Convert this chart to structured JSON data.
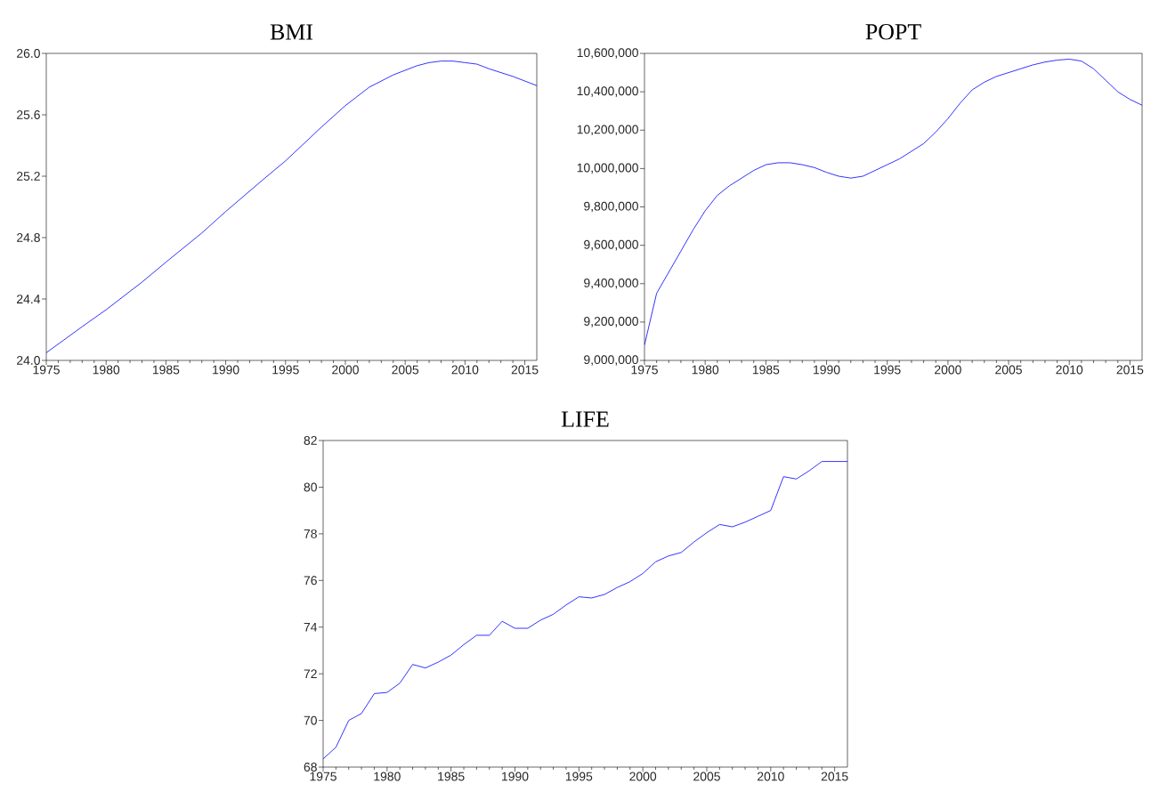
{
  "chart_data": [
    {
      "type": "line",
      "title": "BMI",
      "color": "#0000ff",
      "x": [
        1975,
        1978,
        1980,
        1983,
        1985,
        1988,
        1990,
        1993,
        1995,
        1998,
        2000,
        2002,
        2004,
        2005,
        2006,
        2007,
        2008,
        2009,
        2010,
        2011,
        2012,
        2014,
        2016
      ],
      "values": [
        24.05,
        24.22,
        24.33,
        24.51,
        24.64,
        24.83,
        24.97,
        25.17,
        25.3,
        25.52,
        25.66,
        25.78,
        25.86,
        25.89,
        25.92,
        25.94,
        25.95,
        25.95,
        25.94,
        25.93,
        25.9,
        25.85,
        25.79
      ],
      "xlim": [
        1975,
        2016
      ],
      "xticks": [
        1975,
        1980,
        1985,
        1990,
        1995,
        2000,
        2005,
        2010,
        2015
      ],
      "ylim": [
        24.0,
        26.0
      ],
      "yticks": [
        {
          "value": 24.0,
          "label": "24.0"
        },
        {
          "value": 24.4,
          "label": "24.4"
        },
        {
          "value": 24.8,
          "label": "24.8"
        },
        {
          "value": 25.2,
          "label": "25.2"
        },
        {
          "value": 25.6,
          "label": "25.6"
        },
        {
          "value": 26.0,
          "label": "26.0"
        }
      ]
    },
    {
      "type": "line",
      "title": "POPT",
      "color": "#0000ff",
      "x": [
        1975,
        1976,
        1977,
        1978,
        1979,
        1980,
        1981,
        1982,
        1983,
        1984,
        1985,
        1986,
        1987,
        1988,
        1989,
        1990,
        1991,
        1992,
        1993,
        1994,
        1995,
        1996,
        1997,
        1998,
        1999,
        2000,
        2001,
        2002,
        2003,
        2004,
        2005,
        2006,
        2007,
        2008,
        2009,
        2010,
        2011,
        2012,
        2013,
        2014,
        2015,
        2016
      ],
      "values": [
        9080000,
        9350000,
        9460000,
        9570000,
        9680000,
        9780000,
        9860000,
        9910000,
        9950000,
        9990000,
        10020000,
        10030000,
        10030000,
        10020000,
        10005000,
        9980000,
        9960000,
        9950000,
        9960000,
        9990000,
        10020000,
        10050000,
        10090000,
        10130000,
        10190000,
        10260000,
        10340000,
        10410000,
        10450000,
        10480000,
        10500000,
        10520000,
        10540000,
        10555000,
        10565000,
        10570000,
        10560000,
        10520000,
        10460000,
        10400000,
        10360000,
        10330000
      ],
      "xlim": [
        1975,
        2016
      ],
      "xticks": [
        1975,
        1980,
        1985,
        1990,
        1995,
        2000,
        2005,
        2010,
        2015
      ],
      "ylim": [
        9000000,
        10600000
      ],
      "yticks": [
        {
          "value": 9000000,
          "label": "9,000,000"
        },
        {
          "value": 9200000,
          "label": "9,200,000"
        },
        {
          "value": 9400000,
          "label": "9,400,000"
        },
        {
          "value": 9600000,
          "label": "9,600,000"
        },
        {
          "value": 9800000,
          "label": "9,800,000"
        },
        {
          "value": 10000000,
          "label": "10,000,000"
        },
        {
          "value": 10200000,
          "label": "10,200,000"
        },
        {
          "value": 10400000,
          "label": "10,400,000"
        },
        {
          "value": 10600000,
          "label": "10,600,000"
        }
      ]
    },
    {
      "type": "line",
      "title": "LIFE",
      "color": "#0000ff",
      "x": [
        1975,
        1976,
        1977,
        1978,
        1979,
        1980,
        1981,
        1982,
        1983,
        1984,
        1985,
        1986,
        1987,
        1988,
        1989,
        1990,
        1991,
        1992,
        1993,
        1994,
        1995,
        1996,
        1997,
        1998,
        1999,
        2000,
        2001,
        2002,
        2003,
        2004,
        2005,
        2006,
        2007,
        2008,
        2009,
        2010,
        2011,
        2012,
        2013,
        2014,
        2015,
        2016
      ],
      "values": [
        68.35,
        68.85,
        70.0,
        70.3,
        71.15,
        71.2,
        71.6,
        72.4,
        72.25,
        72.5,
        72.8,
        73.25,
        73.65,
        73.65,
        74.25,
        73.95,
        73.95,
        74.3,
        74.55,
        74.95,
        75.3,
        75.25,
        75.4,
        75.7,
        75.95,
        76.3,
        76.8,
        77.05,
        77.2,
        77.65,
        78.05,
        78.4,
        78.3,
        78.5,
        78.75,
        79.0,
        80.45,
        80.35,
        80.7,
        81.1,
        81.1,
        81.1
      ],
      "xlim": [
        1975,
        2016
      ],
      "xticks": [
        1975,
        1980,
        1985,
        1990,
        1995,
        2000,
        2005,
        2010,
        2015
      ],
      "ylim": [
        68,
        82
      ],
      "yticks": [
        68,
        70,
        72,
        74,
        76,
        78,
        80,
        82
      ]
    }
  ]
}
